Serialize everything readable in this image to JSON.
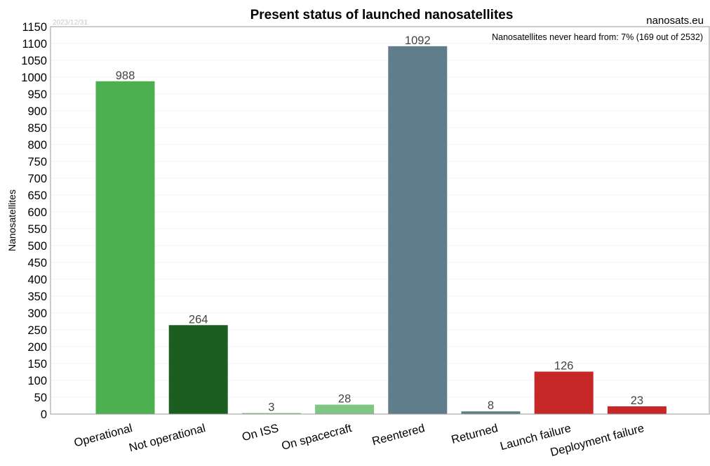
{
  "date": "2023/12/31",
  "source": "nanosats.eu",
  "note": "Nanosatellites never heard from: 7% (169 out of 2532)",
  "chart_data": {
    "type": "bar",
    "title": "Present status of launched nanosatellites",
    "xlabel": "",
    "ylabel": "Nanosatellites",
    "ylim": [
      0,
      1150
    ],
    "ytick_step": 50,
    "grid": true,
    "categories": [
      "Operational",
      "Not operational",
      "On ISS",
      "On spacecraft",
      "Reentered",
      "Returned",
      "Launch failure",
      "Deployment failure"
    ],
    "values": [
      988,
      264,
      3,
      28,
      1092,
      8,
      126,
      23
    ],
    "colors": [
      "#4caf50",
      "#1b5e20",
      "#81c784",
      "#81c784",
      "#607d8b",
      "#607d8b",
      "#c62828",
      "#c62828"
    ]
  }
}
